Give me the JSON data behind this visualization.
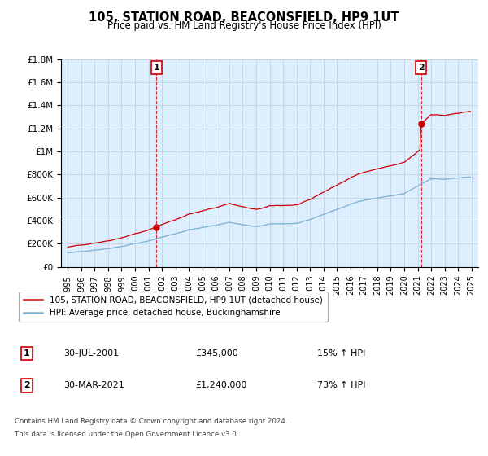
{
  "title": "105, STATION ROAD, BEACONSFIELD, HP9 1UT",
  "subtitle": "Price paid vs. HM Land Registry's House Price Index (HPI)",
  "legend_line1": "105, STATION ROAD, BEACONSFIELD, HP9 1UT (detached house)",
  "legend_line2": "HPI: Average price, detached house, Buckinghamshire",
  "sale1_label": "1",
  "sale1_date": "30-JUL-2001",
  "sale1_price": "£345,000",
  "sale1_hpi": "15% ↑ HPI",
  "sale1_year": 2001.58,
  "sale1_value": 345000,
  "sale2_label": "2",
  "sale2_date": "30-MAR-2021",
  "sale2_price": "£1,240,000",
  "sale2_hpi": "73% ↑ HPI",
  "sale2_year": 2021.25,
  "sale2_value": 1240000,
  "footnote1": "Contains HM Land Registry data © Crown copyright and database right 2024.",
  "footnote2": "This data is licensed under the Open Government Licence v3.0.",
  "ylim": [
    0,
    1800000
  ],
  "xlim": [
    1994.5,
    2025.5
  ],
  "red_color": "#cc0000",
  "blue_color": "#7ab0d4",
  "chart_bg": "#ddeeff",
  "background_color": "#ffffff",
  "grid_color": "#bbccdd"
}
